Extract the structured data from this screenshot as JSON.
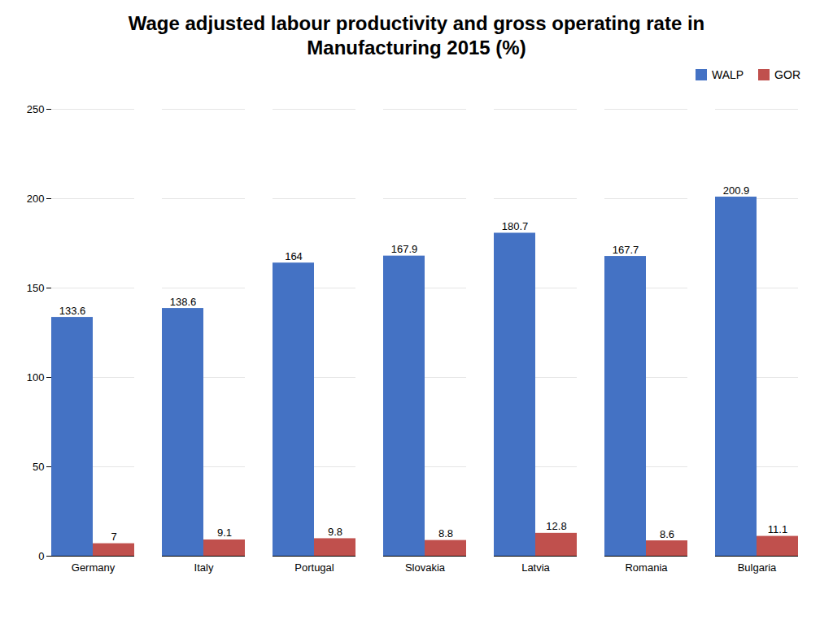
{
  "chart_data": {
    "type": "bar",
    "title": "Wage adjusted labour productivity and gross operating rate in Manufacturing 2015 (%)",
    "categories": [
      "Germany",
      "Italy",
      "Portugal",
      "Slovakia",
      "Latvia",
      "Romania",
      "Bulgaria"
    ],
    "series": [
      {
        "name": "WALP",
        "color": "#4472C4",
        "values": [
          133.6,
          138.6,
          164.0,
          167.9,
          180.7,
          167.7,
          200.9
        ]
      },
      {
        "name": "GOR",
        "color": "#C0504D",
        "values": [
          7.0,
          9.1,
          9.8,
          8.8,
          12.8,
          8.6,
          11.1
        ]
      }
    ],
    "ylim": [
      0,
      250
    ],
    "yticks": [
      0,
      50,
      100,
      150,
      200,
      250
    ],
    "grid": true,
    "legend": "upper right",
    "data_labels": true
  }
}
